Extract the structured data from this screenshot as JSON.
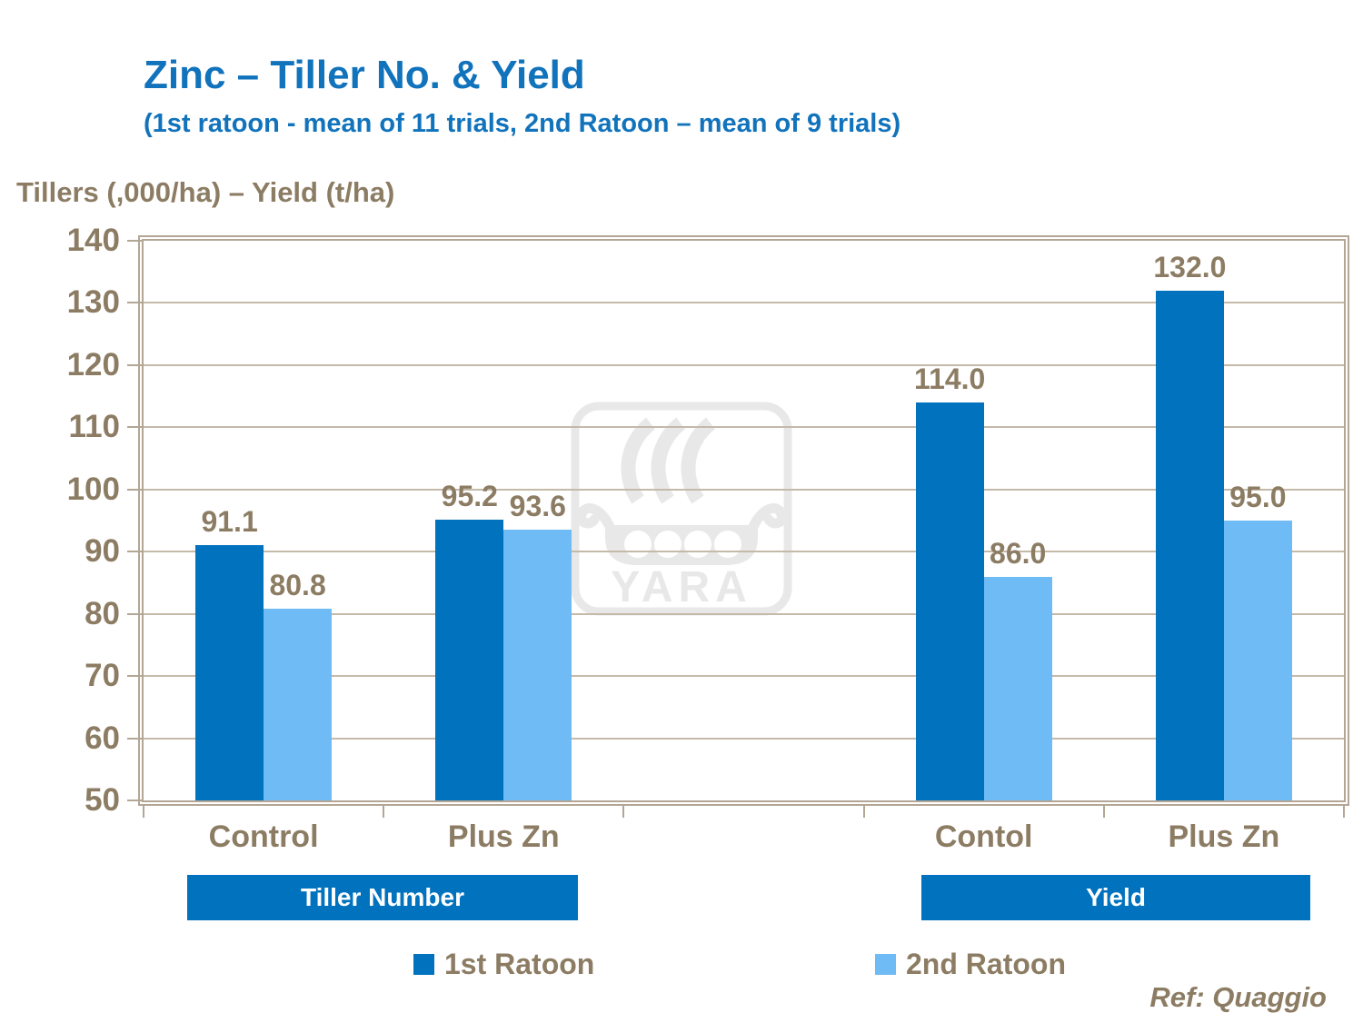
{
  "colors": {
    "title_blue": "#1173BC",
    "bar_dark": "#0072BE",
    "bar_light": "#6EBBF5",
    "text_taupe": "#8C7C63",
    "gridline": "#C5B9A8",
    "frame": "#B3A695",
    "banner_bg": "#0072BE",
    "banner_text": "#FFFFFF",
    "watermark_gray": "#E8E8E8",
    "background": "#FFFFFF"
  },
  "header": {
    "title": "Zinc – Tiller No. & Yield",
    "subtitle": "(1st ratoon - mean of 11 trials, 2nd Ratoon – mean of 9 trials)"
  },
  "axis_title": "Tillers (,000/ha) – Yield (t/ha)",
  "chart_data": {
    "type": "bar",
    "title": "Zinc – Tiller No. & Yield",
    "subtitle": "(1st ratoon - mean of 11 trials, 2nd Ratoon – mean of 9 trials)",
    "ylabel": "Tillers (,000/ha) – Yield (t/ha)",
    "ylim": [
      50,
      140
    ],
    "ytick_step": 10,
    "yticks": [
      140,
      130,
      120,
      110,
      100,
      90,
      80,
      70,
      60,
      50
    ],
    "grid": true,
    "categories": [
      "Control",
      "Plus Zn",
      "Contol",
      "Plus Zn"
    ],
    "category_slots": [
      0,
      1,
      3,
      4
    ],
    "num_slots": 5,
    "sections": [
      {
        "label": "Tiller Number",
        "category_indexes": [
          0,
          1
        ]
      },
      {
        "label": "Yield",
        "category_indexes": [
          2,
          3
        ]
      }
    ],
    "series": [
      {
        "name": "1st Ratoon",
        "color": "#0072BE",
        "values": [
          91.1,
          95.2,
          114.0,
          132.0
        ],
        "labels": [
          "91.1",
          "95.2",
          "114.0",
          "132.0"
        ]
      },
      {
        "name": "2nd Ratoon",
        "color": "#6EBBF5",
        "values": [
          80.8,
          93.6,
          86.0,
          95.0
        ],
        "labels": [
          "80.8",
          "93.6",
          "86.0",
          "95.0"
        ]
      }
    ],
    "legend_position": "bottom"
  },
  "watermark": {
    "text": "YARA"
  },
  "footer": {
    "ref": "Ref: Quaggio"
  }
}
